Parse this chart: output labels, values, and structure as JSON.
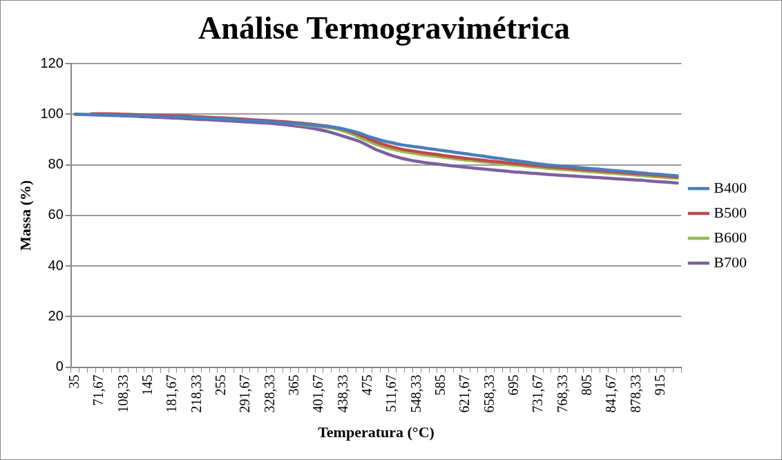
{
  "chart_data": {
    "type": "line",
    "title": "Análise Termogravimétrica",
    "xlabel": "Temperatura (°C)",
    "ylabel": "Massa (%)",
    "categories": [
      "35",
      null,
      null,
      "71,67",
      null,
      null,
      "108,33",
      null,
      null,
      "145",
      null,
      null,
      "181,67",
      null,
      null,
      "218,33",
      null,
      null,
      "255",
      null,
      null,
      "291,67",
      null,
      null,
      "328,33",
      null,
      null,
      "365",
      null,
      null,
      "401,67",
      null,
      null,
      "438,33",
      null,
      null,
      "475",
      null,
      null,
      "511,67",
      null,
      null,
      "548,33",
      null,
      null,
      "585",
      null,
      null,
      "621,67",
      null,
      null,
      "658,33",
      null,
      null,
      "695",
      null,
      null,
      "731,67",
      null,
      null,
      "768,33",
      null,
      null,
      "805",
      null,
      null,
      "841,67",
      null,
      null,
      "878,33",
      null,
      null,
      "915",
      null,
      null
    ],
    "series": [
      {
        "name": "B400",
        "color": "#4a7ebb",
        "values": [
          100,
          99.9,
          99.9,
          99.8,
          99.8,
          99.7,
          99.6,
          99.5,
          99.4,
          99.3,
          99.2,
          99.1,
          99.0,
          98.9,
          98.8,
          98.6,
          98.5,
          98.3,
          98.2,
          98.0,
          97.8,
          97.6,
          97.4,
          97.2,
          97.0,
          96.8,
          96.6,
          96.4,
          96.1,
          95.8,
          95.5,
          95.2,
          94.8,
          94.2,
          93.4,
          92.5,
          91.3,
          90.3,
          89.4,
          88.7,
          88.0,
          87.5,
          87.1,
          86.6,
          86.2,
          85.7,
          85.3,
          84.8,
          84.4,
          83.9,
          83.5,
          83.0,
          82.6,
          82.1,
          81.7,
          81.3,
          80.8,
          80.4,
          80.0,
          79.7,
          79.5,
          79.2,
          78.9,
          78.6,
          78.4,
          78.1,
          77.8,
          77.5,
          77.3,
          77.0,
          76.7,
          76.4,
          76.2,
          75.9,
          75.7
        ]
      },
      {
        "name": "B500",
        "color": "#be4b48",
        "values": [
          null,
          null,
          100.2,
          100.2,
          100.2,
          100.1,
          100.0,
          99.9,
          99.8,
          99.7,
          99.6,
          99.5,
          99.4,
          99.3,
          99.2,
          99.0,
          98.9,
          98.7,
          98.6,
          98.4,
          98.2,
          98.0,
          97.8,
          97.6,
          97.4,
          97.2,
          97.0,
          96.7,
          96.4,
          96.1,
          95.7,
          95.3,
          94.7,
          94.0,
          93.0,
          91.8,
          90.4,
          89.1,
          88.0,
          87.1,
          86.3,
          85.7,
          85.2,
          84.7,
          84.3,
          83.8,
          83.4,
          83.0,
          82.6,
          82.2,
          81.9,
          81.5,
          81.2,
          80.8,
          80.5,
          80.2,
          79.9,
          79.6,
          79.3,
          79.0,
          78.8,
          78.5,
          78.3,
          78.0,
          77.8,
          77.5,
          77.3,
          77.0,
          76.8,
          76.5,
          76.3,
          76.0,
          75.8,
          75.5,
          75.2
        ]
      },
      {
        "name": "B600",
        "color": "#98b954",
        "values": [
          null,
          null,
          null,
          null,
          null,
          null,
          null,
          null,
          null,
          null,
          null,
          null,
          null,
          null,
          null,
          null,
          null,
          null,
          null,
          null,
          null,
          null,
          null,
          null,
          null,
          null,
          null,
          96.2,
          95.8,
          95.5,
          95.2,
          94.8,
          94.2,
          93.3,
          92.2,
          90.8,
          89.4,
          88.1,
          87.0,
          86.2,
          85.5,
          84.9,
          84.4,
          83.9,
          83.5,
          83.1,
          82.7,
          82.3,
          81.9,
          81.6,
          81.2,
          80.9,
          80.5,
          80.2,
          79.9,
          79.6,
          79.3,
          79.0,
          78.7,
          78.4,
          78.2,
          77.9,
          77.7,
          77.4,
          77.2,
          76.9,
          76.7,
          76.4,
          76.2,
          75.9,
          75.7,
          75.4,
          75.2,
          74.9,
          74.7
        ]
      },
      {
        "name": "B700",
        "color": "#7d60a0",
        "values": [
          100,
          99.9,
          99.8,
          99.7,
          99.6,
          99.5,
          99.4,
          99.3,
          99.1,
          99.0,
          98.8,
          98.7,
          98.5,
          98.4,
          98.2,
          98.0,
          97.9,
          97.7,
          97.5,
          97.4,
          97.2,
          97.0,
          96.8,
          96.6,
          96.4,
          96.1,
          95.8,
          95.4,
          95.0,
          94.5,
          93.9,
          93.2,
          92.3,
          91.3,
          90.3,
          89.2,
          87.6,
          86.0,
          84.8,
          83.6,
          82.7,
          82.0,
          81.4,
          80.9,
          80.5,
          80.1,
          79.7,
          79.4,
          79.0,
          78.7,
          78.4,
          78.1,
          77.8,
          77.5,
          77.2,
          77.0,
          76.7,
          76.5,
          76.2,
          76.0,
          75.8,
          75.6,
          75.4,
          75.2,
          75.0,
          74.8,
          74.6,
          74.4,
          74.2,
          74.0,
          73.8,
          73.5,
          73.3,
          73.1,
          72.8
        ]
      }
    ],
    "ylim": [
      0,
      120
    ],
    "yticks": [
      0,
      20,
      40,
      60,
      80,
      100,
      120
    ],
    "grid": "y",
    "legend": "right",
    "marker": "none",
    "line_style": "solid"
  }
}
